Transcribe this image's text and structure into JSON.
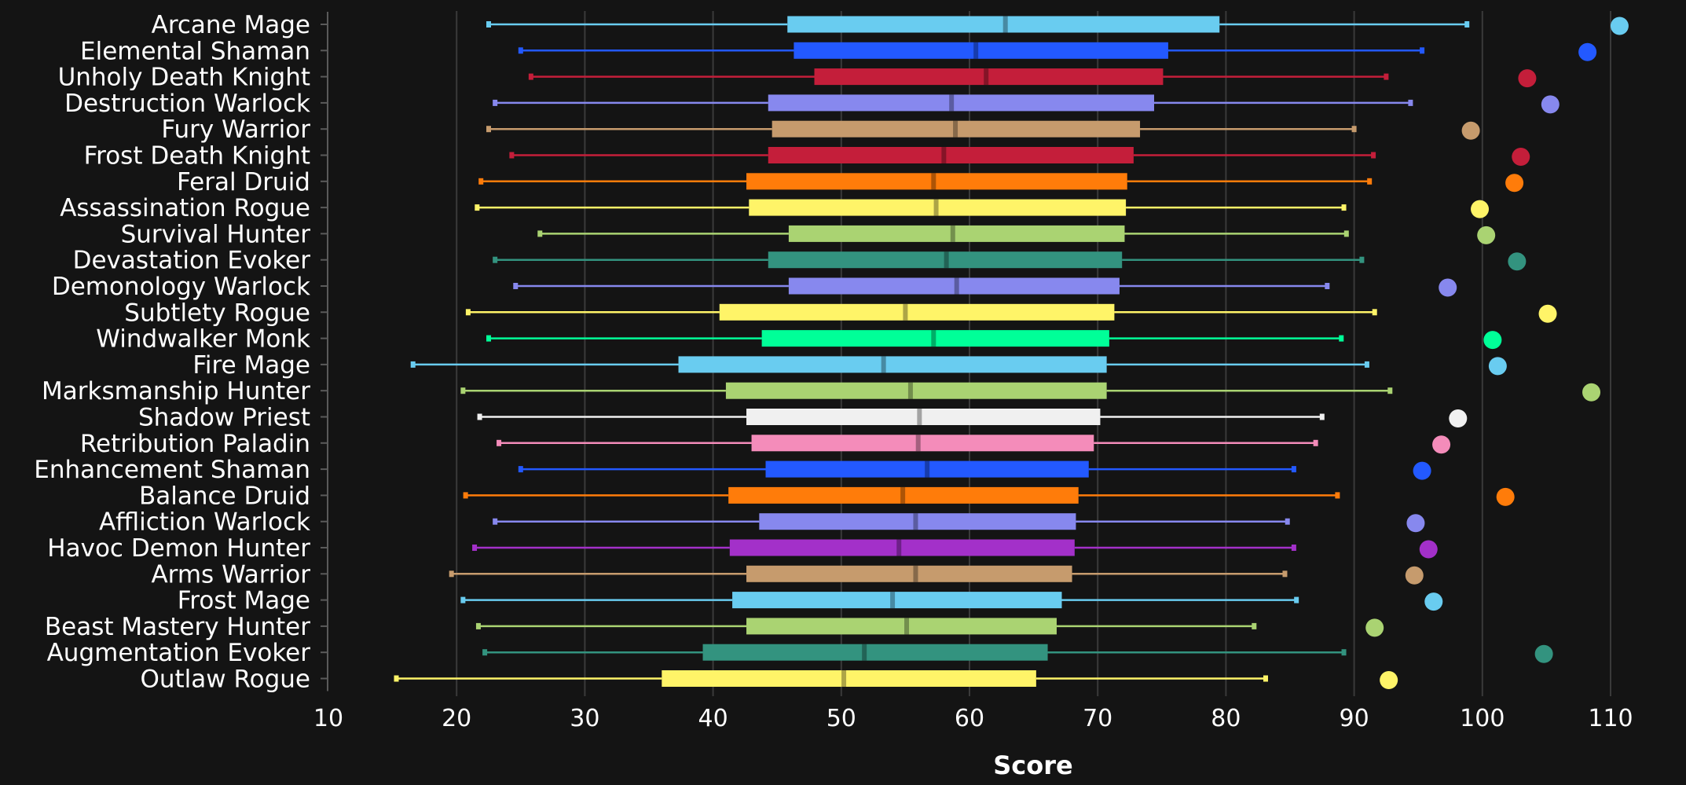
{
  "chart_data": {
    "type": "box",
    "title": "",
    "xlabel": "Score",
    "ylabel": "",
    "xlim": [
      10,
      110
    ],
    "xticks": [
      10,
      20,
      30,
      40,
      50,
      60,
      70,
      80,
      90,
      100,
      110
    ],
    "grid": "vertical",
    "legend": "none",
    "categories": [
      "Arcane Mage",
      "Elemental Shaman",
      "Unholy Death Knight",
      "Destruction Warlock",
      "Fury Warrior",
      "Frost Death Knight",
      "Feral Druid",
      "Assassination Rogue",
      "Survival Hunter",
      "Devastation Evoker",
      "Demonology Warlock",
      "Subtlety Rogue",
      "Windwalker Monk",
      "Fire Mage",
      "Marksmanship Hunter",
      "Shadow Priest",
      "Retribution Paladin",
      "Enhancement Shaman",
      "Balance Druid",
      "Affliction Warlock",
      "Havoc Demon Hunter",
      "Arms Warrior",
      "Frost Mage",
      "Beast Mastery Hunter",
      "Augmentation Evoker",
      "Outlaw Rogue"
    ],
    "series": [
      {
        "min": 22.5,
        "q1": 45.8,
        "median": 62.8,
        "q3": 79.5,
        "max": 98.8,
        "max_point": 110.7,
        "color": "#69ccf0"
      },
      {
        "min": 25.0,
        "q1": 46.3,
        "median": 60.5,
        "q3": 75.5,
        "max": 95.3,
        "max_point": 108.2,
        "color": "#2359ff"
      },
      {
        "min": 25.8,
        "q1": 47.9,
        "median": 61.3,
        "q3": 75.1,
        "max": 92.5,
        "max_point": 103.5,
        "color": "#c41e3a"
      },
      {
        "min": 23.0,
        "q1": 44.3,
        "median": 58.6,
        "q3": 74.4,
        "max": 94.4,
        "max_point": 105.3,
        "color": "#8788ee"
      },
      {
        "min": 22.5,
        "q1": 44.6,
        "median": 58.9,
        "q3": 73.3,
        "max": 90.0,
        "max_point": 99.1,
        "color": "#c69b6d"
      },
      {
        "min": 24.3,
        "q1": 44.3,
        "median": 58.0,
        "q3": 72.8,
        "max": 91.5,
        "max_point": 103.0,
        "color": "#c41e3a"
      },
      {
        "min": 21.9,
        "q1": 42.6,
        "median": 57.2,
        "q3": 72.3,
        "max": 91.2,
        "max_point": 102.5,
        "color": "#ff7c0a"
      },
      {
        "min": 21.6,
        "q1": 42.8,
        "median": 57.4,
        "q3": 72.2,
        "max": 89.2,
        "max_point": 99.8,
        "color": "#fff468"
      },
      {
        "min": 26.5,
        "q1": 45.9,
        "median": 58.7,
        "q3": 72.1,
        "max": 89.4,
        "max_point": 100.3,
        "color": "#aad372"
      },
      {
        "min": 23.0,
        "q1": 44.3,
        "median": 58.2,
        "q3": 71.9,
        "max": 90.6,
        "max_point": 102.7,
        "color": "#33937f"
      },
      {
        "min": 24.6,
        "q1": 45.9,
        "median": 59.0,
        "q3": 71.7,
        "max": 87.9,
        "max_point": 97.3,
        "color": "#8788ee"
      },
      {
        "min": 20.9,
        "q1": 40.5,
        "median": 55.0,
        "q3": 71.3,
        "max": 91.6,
        "max_point": 105.1,
        "color": "#fff468"
      },
      {
        "min": 22.5,
        "q1": 43.8,
        "median": 57.2,
        "q3": 70.9,
        "max": 89.0,
        "max_point": 100.8,
        "color": "#00ff98"
      },
      {
        "min": 16.6,
        "q1": 37.3,
        "median": 53.3,
        "q3": 70.7,
        "max": 91.0,
        "max_point": 101.2,
        "color": "#69ccf0"
      },
      {
        "min": 20.5,
        "q1": 41.0,
        "median": 55.4,
        "q3": 70.7,
        "max": 92.8,
        "max_point": 108.5,
        "color": "#aad372"
      },
      {
        "min": 21.8,
        "q1": 42.6,
        "median": 56.1,
        "q3": 70.2,
        "max": 87.5,
        "max_point": 98.1,
        "color": "#f0f0f0"
      },
      {
        "min": 23.3,
        "q1": 43.0,
        "median": 56.0,
        "q3": 69.7,
        "max": 87.0,
        "max_point": 96.8,
        "color": "#f48cba"
      },
      {
        "min": 25.0,
        "q1": 44.1,
        "median": 56.7,
        "q3": 69.3,
        "max": 85.3,
        "max_point": 95.3,
        "color": "#2359ff"
      },
      {
        "min": 20.7,
        "q1": 41.2,
        "median": 54.8,
        "q3": 68.5,
        "max": 88.7,
        "max_point": 101.8,
        "color": "#ff7c0a"
      },
      {
        "min": 23.0,
        "q1": 43.6,
        "median": 55.8,
        "q3": 68.3,
        "max": 84.8,
        "max_point": 94.8,
        "color": "#8788ee"
      },
      {
        "min": 21.4,
        "q1": 41.3,
        "median": 54.5,
        "q3": 68.2,
        "max": 85.3,
        "max_point": 95.8,
        "color": "#a330c9"
      },
      {
        "min": 19.6,
        "q1": 42.6,
        "median": 55.8,
        "q3": 68.0,
        "max": 84.6,
        "max_point": 94.7,
        "color": "#c69b6d"
      },
      {
        "min": 20.5,
        "q1": 41.5,
        "median": 54.0,
        "q3": 67.2,
        "max": 85.5,
        "max_point": 96.2,
        "color": "#69ccf0"
      },
      {
        "min": 21.7,
        "q1": 42.6,
        "median": 55.1,
        "q3": 66.8,
        "max": 82.2,
        "max_point": 91.6,
        "color": "#aad372"
      },
      {
        "min": 22.2,
        "q1": 39.2,
        "median": 51.8,
        "q3": 66.1,
        "max": 89.2,
        "max_point": 104.8,
        "color": "#33937f"
      },
      {
        "min": 15.3,
        "q1": 36.0,
        "median": 50.2,
        "q3": 65.2,
        "max": 83.1,
        "max_point": 92.7,
        "color": "#fff468"
      }
    ]
  }
}
